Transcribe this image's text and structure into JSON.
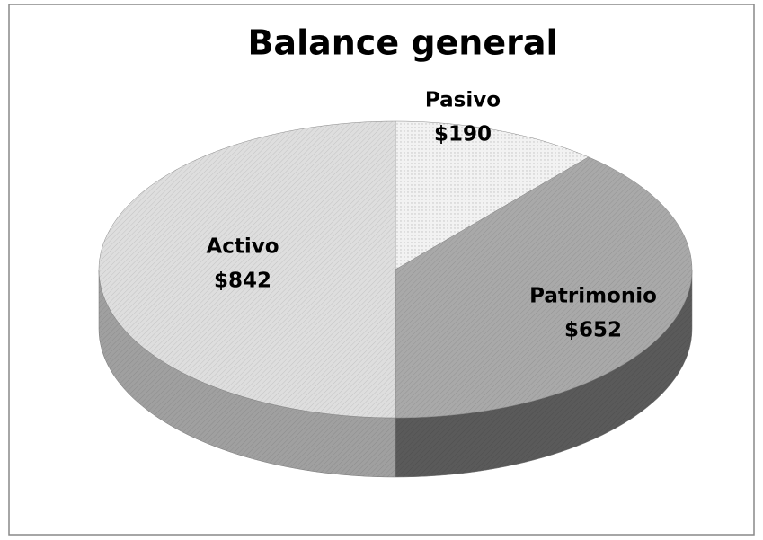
{
  "chart_data": {
    "type": "pie",
    "title": "Balance general",
    "categories": [
      "Pasivo",
      "Patrimonio",
      "Activo"
    ],
    "values": [
      190,
      652,
      842
    ],
    "value_labels": [
      "$190",
      "$652",
      "$842"
    ],
    "colors": [
      "#f2f2f2",
      "#a9a9a9",
      "#dedede"
    ],
    "side_colors": [
      "#cfcfcf",
      "#5a5a5a",
      "#a0a0a0"
    ]
  }
}
